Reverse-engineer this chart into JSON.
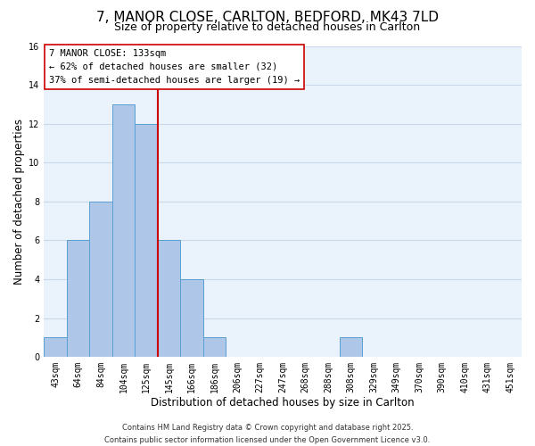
{
  "title": "7, MANOR CLOSE, CARLTON, BEDFORD, MK43 7LD",
  "subtitle": "Size of property relative to detached houses in Carlton",
  "xlabel": "Distribution of detached houses by size in Carlton",
  "ylabel": "Number of detached properties",
  "bin_labels": [
    "43sqm",
    "64sqm",
    "84sqm",
    "104sqm",
    "125sqm",
    "145sqm",
    "166sqm",
    "186sqm",
    "206sqm",
    "227sqm",
    "247sqm",
    "268sqm",
    "288sqm",
    "308sqm",
    "329sqm",
    "349sqm",
    "370sqm",
    "390sqm",
    "410sqm",
    "431sqm",
    "451sqm"
  ],
  "bar_values": [
    1,
    6,
    8,
    13,
    12,
    6,
    4,
    1,
    0,
    0,
    0,
    0,
    0,
    1,
    0,
    0,
    0,
    0,
    0,
    0,
    0
  ],
  "bar_color": "#aec6e8",
  "bar_edge_color": "#5a9fd4",
  "vline_x_index": 4.5,
  "vline_color": "#cc0000",
  "ylim": [
    0,
    16
  ],
  "yticks": [
    0,
    2,
    4,
    6,
    8,
    10,
    12,
    14,
    16
  ],
  "grid_color": "#c8d8e8",
  "background_color": "#eaf2fb",
  "annotation_box_text": "7 MANOR CLOSE: 133sqm\n← 62% of detached houses are smaller (32)\n37% of semi-detached houses are larger (19) →",
  "footer_line1": "Contains HM Land Registry data © Crown copyright and database right 2025.",
  "footer_line2": "Contains public sector information licensed under the Open Government Licence v3.0.",
  "title_fontsize": 11,
  "subtitle_fontsize": 9,
  "axis_label_fontsize": 8.5,
  "tick_fontsize": 7,
  "annotation_fontsize": 7.5,
  "footer_fontsize": 6
}
